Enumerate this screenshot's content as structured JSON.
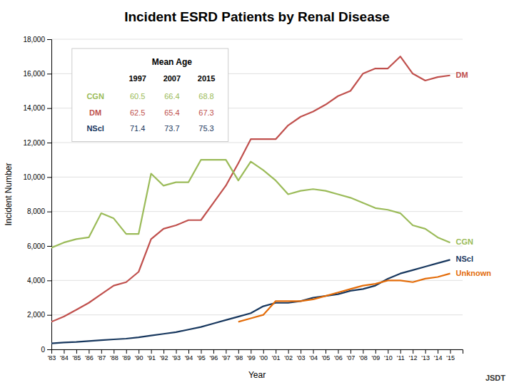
{
  "chart_data": {
    "type": "line",
    "title": "Incident ESRD Patients by Renal Disease",
    "x_label": "Year",
    "y_label": "Incident Number",
    "x": [
      1983,
      1984,
      1985,
      1986,
      1987,
      1988,
      1989,
      1990,
      1991,
      1992,
      1993,
      1994,
      1995,
      1996,
      1997,
      1998,
      1999,
      2000,
      2001,
      2002,
      2003,
      2004,
      2005,
      2006,
      2007,
      2008,
      2009,
      2010,
      2011,
      2012,
      2013,
      2014,
      2015
    ],
    "series": [
      {
        "name": "DM",
        "color": "#C0504D",
        "values": [
          1600,
          1900,
          2300,
          2700,
          3200,
          3700,
          3900,
          4500,
          6400,
          7000,
          7200,
          7500,
          7500,
          8500,
          9500,
          10800,
          12200,
          12200,
          12200,
          13000,
          13500,
          13800,
          14200,
          14700,
          15000,
          16000,
          16300,
          16300,
          17000,
          16000,
          15600,
          15800,
          15900
        ]
      },
      {
        "name": "CGN",
        "color": "#9BBB59",
        "values": [
          5900,
          6200,
          6400,
          6500,
          7900,
          7600,
          6700,
          6700,
          10200,
          9500,
          9700,
          9700,
          11000,
          11000,
          11000,
          9800,
          10900,
          10400,
          9800,
          9000,
          9200,
          9300,
          9200,
          9000,
          8800,
          8500,
          8200,
          8100,
          7900,
          7200,
          7000,
          6500,
          6200
        ]
      },
      {
        "name": "NScl",
        "color": "#17375E",
        "values": [
          350,
          400,
          430,
          480,
          530,
          580,
          620,
          700,
          800,
          900,
          1000,
          1150,
          1300,
          1500,
          1700,
          1900,
          2100,
          2500,
          2700,
          2700,
          2800,
          3000,
          3100,
          3200,
          3400,
          3500,
          3700,
          4100,
          4400,
          4600,
          4800,
          5000,
          5200
        ]
      },
      {
        "name": "Unknown",
        "color": "#E36C09",
        "values": [
          null,
          null,
          null,
          null,
          null,
          null,
          null,
          null,
          null,
          null,
          null,
          null,
          null,
          null,
          null,
          1600,
          1800,
          2000,
          2800,
          2800,
          2800,
          2900,
          3100,
          3300,
          3500,
          3700,
          3800,
          4000,
          4000,
          3900,
          4100,
          4200,
          4400
        ]
      }
    ],
    "xlim": [
      1983,
      2016
    ],
    "xticks": [
      {
        "value": 1983,
        "label": "'83"
      },
      {
        "value": 1984,
        "label": "'84"
      },
      {
        "value": 1985,
        "label": "'85"
      },
      {
        "value": 1986,
        "label": "'86"
      },
      {
        "value": 1987,
        "label": "'87"
      },
      {
        "value": 1988,
        "label": "'88"
      },
      {
        "value": 1989,
        "label": "'89"
      },
      {
        "value": 1990,
        "label": "'90"
      },
      {
        "value": 1991,
        "label": "'91"
      },
      {
        "value": 1992,
        "label": "'92"
      },
      {
        "value": 1993,
        "label": "'93"
      },
      {
        "value": 1994,
        "label": "'94"
      },
      {
        "value": 1995,
        "label": "'95"
      },
      {
        "value": 1996,
        "label": "'96"
      },
      {
        "value": 1997,
        "label": "'97"
      },
      {
        "value": 1998,
        "label": "'98"
      },
      {
        "value": 1999,
        "label": "'99"
      },
      {
        "value": 2000,
        "label": "'00"
      },
      {
        "value": 2001,
        "label": "'01"
      },
      {
        "value": 2002,
        "label": "'02"
      },
      {
        "value": 2003,
        "label": "'03"
      },
      {
        "value": 2004,
        "label": "'04"
      },
      {
        "value": 2005,
        "label": "'05"
      },
      {
        "value": 2006,
        "label": "'06"
      },
      {
        "value": 2007,
        "label": "'07"
      },
      {
        "value": 2008,
        "label": "'08"
      },
      {
        "value": 2009,
        "label": "'09"
      },
      {
        "value": 2010,
        "label": "'10"
      },
      {
        "value": 2011,
        "label": "'11"
      },
      {
        "value": 2012,
        "label": "'12"
      },
      {
        "value": 2013,
        "label": "'13"
      },
      {
        "value": 2014,
        "label": "'14"
      },
      {
        "value": 2015,
        "label": "'15"
      }
    ],
    "ylim": [
      0,
      18000
    ],
    "yticks": [
      0,
      {
        "value": 2000,
        "label": "2,000"
      },
      {
        "value": 4000,
        "label": "4,000"
      },
      {
        "value": 6000,
        "label": "6,000"
      },
      {
        "value": 8000,
        "label": "8,000"
      },
      {
        "value": 10000,
        "label": "10,000"
      },
      {
        "value": 12000,
        "label": "12,000"
      },
      {
        "value": 14000,
        "label": "14,000"
      },
      {
        "value": 16000,
        "label": "16,000"
      },
      {
        "value": 18000,
        "label": "18,000"
      }
    ],
    "grid": true,
    "mean_age_table": {
      "title": "Mean Age",
      "columns": [
        "1997",
        "2007",
        "2015"
      ],
      "rows": [
        {
          "name": "CGN",
          "values": [
            60.5,
            66.4,
            68.8
          ]
        },
        {
          "name": "DM",
          "values": [
            62.5,
            65.4,
            67.3
          ]
        },
        {
          "name": "NScl",
          "values": [
            71.4,
            73.7,
            75.3
          ]
        }
      ]
    },
    "annotations": [
      "JSDT"
    ]
  }
}
